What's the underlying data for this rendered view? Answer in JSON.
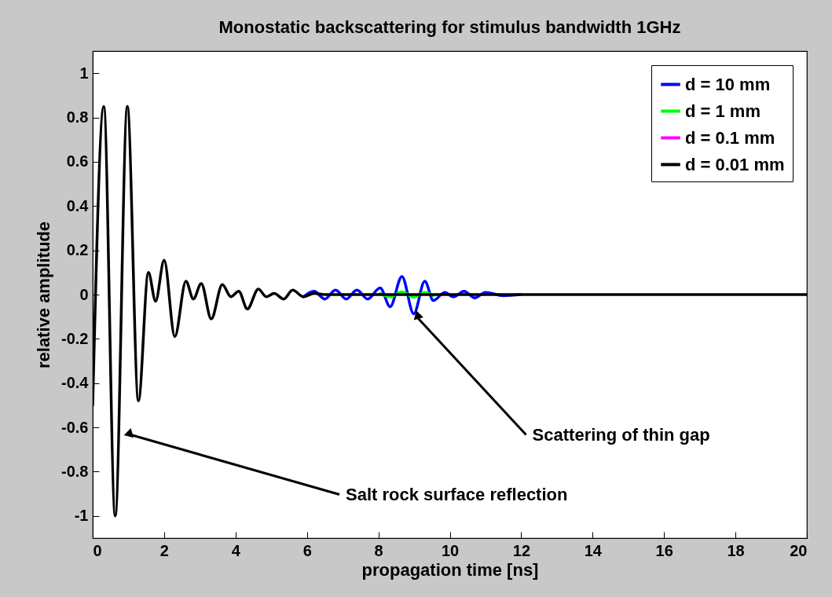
{
  "chart_data": {
    "type": "line",
    "title": "Monostatic backscattering for stimulus bandwidth 1GHz",
    "xlabel": "propagation time [ns]",
    "ylabel": "relative amplitude",
    "x": [
      0,
      0.31,
      0.63,
      0.97,
      1.28,
      1.56,
      1.76,
      2.0,
      2.3,
      2.61,
      2.82,
      3.04,
      3.32,
      3.63,
      3.87,
      4.09,
      4.33,
      4.64,
      4.86,
      5.08,
      5.35,
      5.6,
      5.9,
      6.2,
      6.5,
      6.8,
      7.1,
      7.4,
      7.7,
      8.05,
      8.33,
      8.66,
      8.99,
      9.3,
      9.54,
      9.86,
      10.1,
      10.4,
      10.7,
      11.0,
      11.5,
      12,
      13,
      14,
      15,
      16,
      17,
      18,
      19,
      20
    ],
    "series": [
      {
        "name": "d = 10 mm",
        "color": "#0000ff",
        "values": [
          null,
          null,
          null,
          null,
          null,
          null,
          null,
          null,
          null,
          null,
          null,
          null,
          null,
          null,
          null,
          null,
          null,
          null,
          null,
          null,
          null,
          null,
          -0.01,
          0.015,
          -0.02,
          0.02,
          -0.02,
          0.02,
          -0.02,
          0.03,
          -0.055,
          0.082,
          -0.087,
          0.06,
          -0.027,
          0.01,
          -0.01,
          0.015,
          -0.015,
          0.01,
          -0.005,
          0,
          null,
          null,
          null,
          null,
          null,
          null,
          null,
          null
        ]
      },
      {
        "name": "d = 1 mm",
        "color": "#00ff00",
        "values": [
          null,
          null,
          null,
          null,
          null,
          null,
          null,
          null,
          null,
          null,
          null,
          null,
          null,
          null,
          null,
          null,
          null,
          null,
          null,
          null,
          null,
          null,
          null,
          null,
          null,
          null,
          null,
          null,
          null,
          0.005,
          -0.01,
          0.012,
          -0.012,
          0.01,
          -0.005,
          null,
          null,
          null,
          null,
          null,
          null,
          null,
          null,
          null,
          null,
          null,
          null,
          null,
          null,
          null
        ]
      },
      {
        "name": "d = 0.1 mm",
        "color": "#ff00ff",
        "values": [
          null,
          null,
          null,
          null,
          null,
          null,
          null,
          null,
          null,
          null,
          null,
          null,
          null,
          null,
          null,
          null,
          null,
          null,
          null,
          null,
          null,
          null,
          null,
          null,
          null,
          null,
          null,
          null,
          null,
          null,
          null,
          null,
          null,
          null,
          null,
          null,
          null,
          null,
          null,
          null,
          null,
          null,
          null,
          null,
          null,
          null,
          null,
          null,
          null,
          null
        ]
      },
      {
        "name": "d = 0.01 mm",
        "color": "#000000",
        "values": [
          -0.5,
          0.85,
          -1,
          0.85,
          -0.48,
          0.1,
          -0.03,
          0.155,
          -0.19,
          0.06,
          -0.02,
          0.05,
          -0.11,
          0.045,
          -0.01,
          0.015,
          -0.065,
          0.025,
          -0.01,
          0.005,
          -0.02,
          0.02,
          -0.01,
          0.005,
          0,
          0,
          0,
          0,
          0,
          0,
          0,
          0,
          0,
          0,
          0,
          0,
          0,
          0,
          0,
          0,
          0,
          0,
          0,
          0,
          0,
          0,
          0,
          0,
          0,
          0
        ]
      }
    ],
    "xlim": [
      0,
      20
    ],
    "xticks": [
      0,
      2,
      4,
      6,
      8,
      10,
      12,
      14,
      16,
      18,
      20
    ],
    "ylim": [
      -1.1,
      1.1
    ],
    "yticks": [
      -1,
      -0.8,
      -0.6,
      -0.4,
      -0.2,
      0,
      0.2,
      0.4,
      0.6,
      0.8,
      1
    ],
    "annotations": [
      {
        "text": "Salt rock surface reflection",
        "x": 0.99,
        "y": -0.63
      },
      {
        "text": "Scattering of thin gap",
        "x": 8.99,
        "y": -0.087
      }
    ],
    "grid": false,
    "legend": "top right",
    "marker": "none",
    "line_style": "solid"
  }
}
